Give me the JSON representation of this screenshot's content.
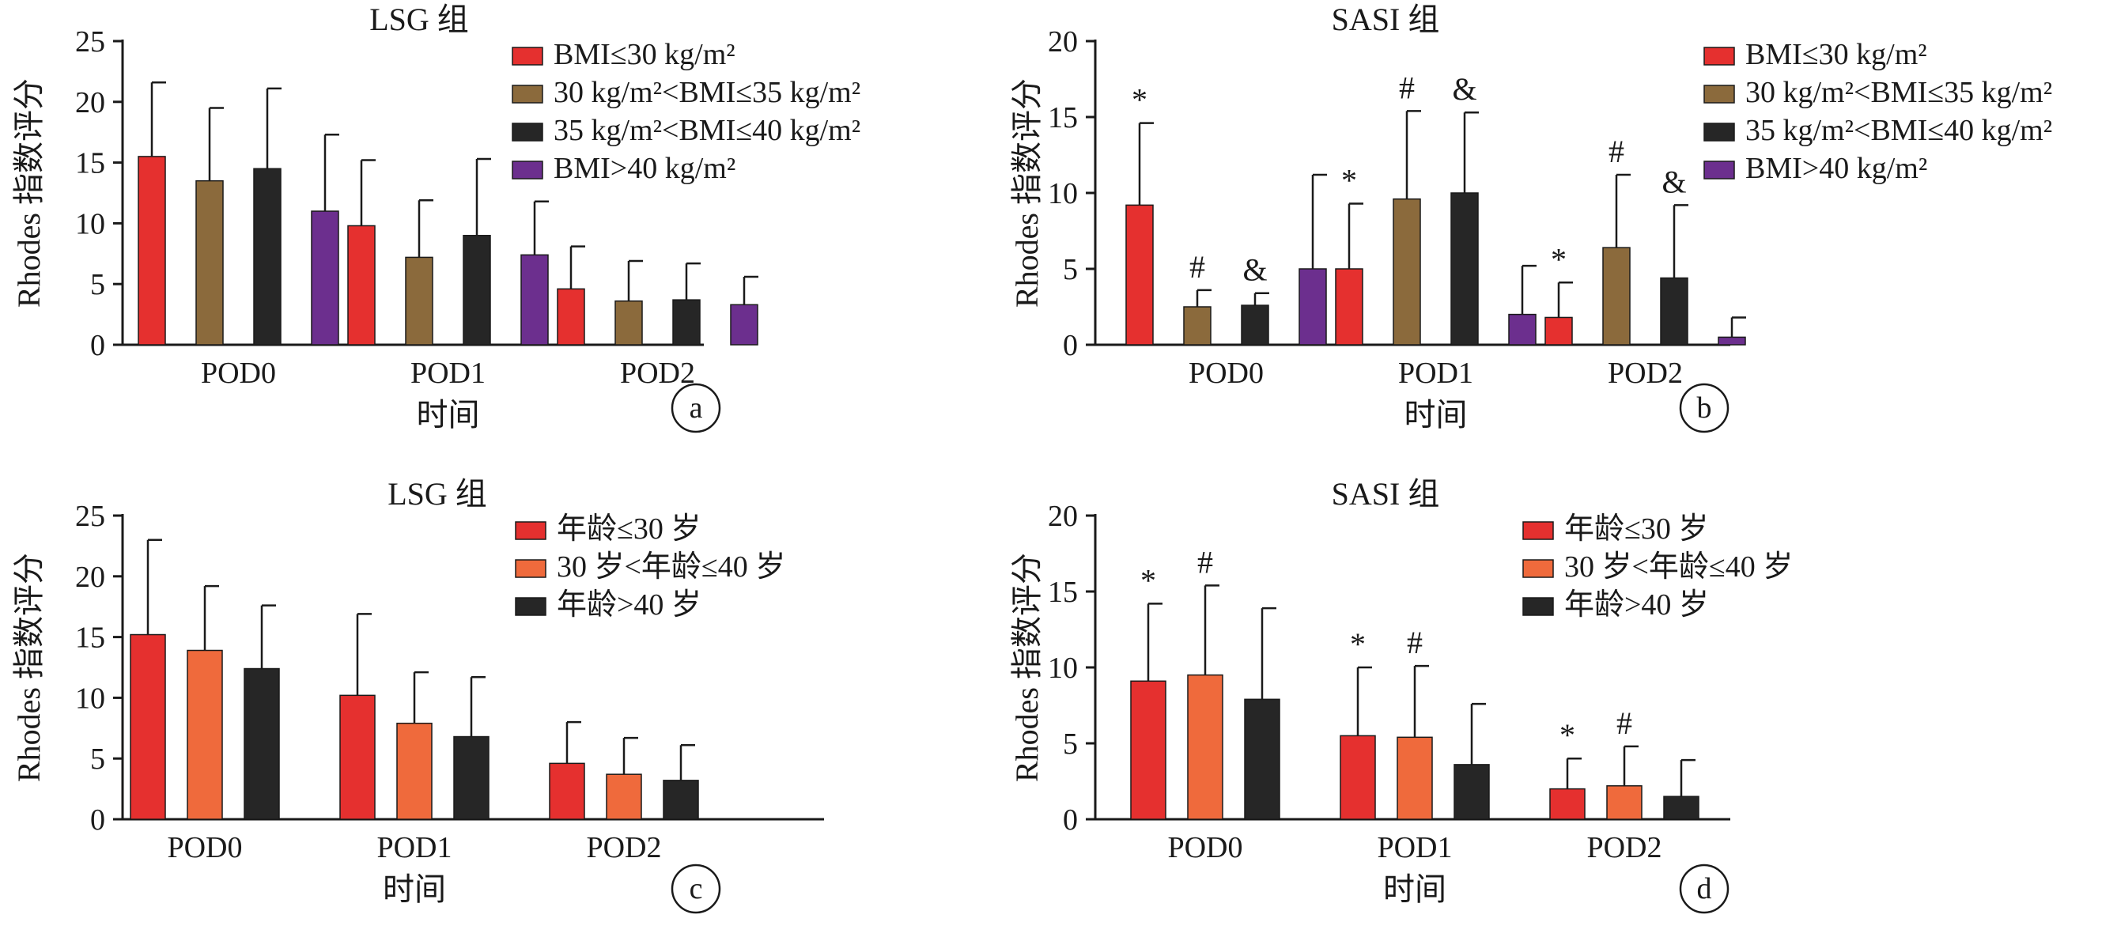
{
  "colors": {
    "red": "#e5302f",
    "brown": "#8b6a3c",
    "black": "#262626",
    "purple": "#6c2f8e",
    "orange": "#ef6a3c",
    "axis": "#1a1a1a"
  },
  "chart_data": [
    {
      "type": "bar",
      "title": "LSG 组",
      "panel_label": "a",
      "xlabel": "时间",
      "ylabel": "Rhodes 指数评分",
      "ylim": [
        0,
        25
      ],
      "yticks": [
        "0",
        "5",
        "10",
        "15",
        "20",
        "25"
      ],
      "categories": [
        "POD0",
        "POD1",
        "POD2"
      ],
      "legend_position": "top-right",
      "series": [
        {
          "name": "BMI≤30 kg/m²",
          "color": "red",
          "values": [
            15.5,
            9.8,
            4.6
          ],
          "errors": [
            6.1,
            5.4,
            3.5
          ],
          "markers": [
            "",
            "",
            ""
          ]
        },
        {
          "name": "30 kg/m²<BMI≤35 kg/m²",
          "color": "brown",
          "values": [
            13.5,
            7.2,
            3.6
          ],
          "errors": [
            6.0,
            4.7,
            3.3
          ],
          "markers": [
            "",
            "",
            ""
          ]
        },
        {
          "name": "35 kg/m²<BMI≤40 kg/m²",
          "color": "black",
          "values": [
            14.5,
            9.0,
            3.7
          ],
          "errors": [
            6.6,
            6.3,
            3.0
          ],
          "markers": [
            "",
            "",
            ""
          ]
        },
        {
          "name": "BMI>40 kg/m²",
          "color": "purple",
          "values": [
            11.0,
            7.4,
            3.3
          ],
          "errors": [
            6.3,
            4.4,
            2.3
          ],
          "markers": [
            "",
            "",
            ""
          ]
        }
      ]
    },
    {
      "type": "bar",
      "title": "SASI 组",
      "panel_label": "b",
      "xlabel": "时间",
      "ylabel": "Rhodes 指数评分",
      "ylim": [
        0,
        20
      ],
      "yticks": [
        "0",
        "5",
        "10",
        "15",
        "20"
      ],
      "categories": [
        "POD0",
        "POD1",
        "POD2"
      ],
      "legend_position": "top-right",
      "series": [
        {
          "name": "BMI≤30 kg/m²",
          "color": "red",
          "values": [
            9.2,
            5.0,
            1.8
          ],
          "errors": [
            5.4,
            4.3,
            2.3
          ],
          "markers": [
            "*",
            "*",
            "*"
          ]
        },
        {
          "name": "30 kg/m²<BMI≤35 kg/m²",
          "color": "brown",
          "values": [
            2.5,
            9.6,
            6.4
          ],
          "errors": [
            1.1,
            5.8,
            4.8
          ],
          "markers": [
            "#",
            "#",
            "#"
          ]
        },
        {
          "name": "35 kg/m²<BMI≤40 kg/m²",
          "color": "black",
          "values": [
            2.6,
            10.0,
            4.4
          ],
          "errors": [
            0.8,
            5.3,
            4.8
          ],
          "markers": [
            "&",
            "&",
            "&"
          ]
        },
        {
          "name": "BMI>40 kg/m²",
          "color": "purple",
          "values": [
            5.0,
            2.0,
            0.5
          ],
          "errors": [
            6.2,
            3.2,
            1.3
          ],
          "markers": [
            "",
            "",
            ""
          ]
        }
      ]
    },
    {
      "type": "bar",
      "title": "LSG 组",
      "panel_label": "c",
      "xlabel": "时间",
      "ylabel": "Rhodes 指数评分",
      "ylim": [
        0,
        25
      ],
      "yticks": [
        "0",
        "5",
        "10",
        "15",
        "20",
        "25"
      ],
      "categories": [
        "POD0",
        "POD1",
        "POD2"
      ],
      "legend_position": "top-right",
      "series": [
        {
          "name": "年龄≤30 岁",
          "color": "red",
          "values": [
            15.2,
            10.2,
            4.6
          ],
          "errors": [
            7.8,
            6.7,
            3.4
          ],
          "markers": [
            "",
            "",
            ""
          ]
        },
        {
          "name": "30 岁<年龄≤40 岁",
          "color": "orange",
          "values": [
            13.9,
            7.9,
            3.7
          ],
          "errors": [
            5.3,
            4.2,
            3.0
          ],
          "markers": [
            "",
            "",
            ""
          ]
        },
        {
          "name": "年龄>40 岁",
          "color": "black",
          "values": [
            12.4,
            6.8,
            3.2
          ],
          "errors": [
            5.2,
            4.9,
            2.9
          ],
          "markers": [
            "",
            "",
            ""
          ]
        }
      ]
    },
    {
      "type": "bar",
      "title": "SASI 组",
      "panel_label": "d",
      "xlabel": "时间",
      "ylabel": "Rhodes 指数评分",
      "ylim": [
        0,
        20
      ],
      "yticks": [
        "0",
        "5",
        "10",
        "15",
        "20"
      ],
      "categories": [
        "POD0",
        "POD1",
        "POD2"
      ],
      "legend_position": "top-right",
      "series": [
        {
          "name": "年龄≤30 岁",
          "color": "red",
          "values": [
            9.1,
            5.5,
            2.0
          ],
          "errors": [
            5.1,
            4.5,
            2.0
          ],
          "markers": [
            "*",
            "*",
            "*"
          ]
        },
        {
          "name": "30 岁<年龄≤40 岁",
          "color": "orange",
          "values": [
            9.5,
            5.4,
            2.2
          ],
          "errors": [
            5.9,
            4.7,
            2.6
          ],
          "markers": [
            "#",
            "#",
            "#"
          ]
        },
        {
          "name": "年龄>40 岁",
          "color": "black",
          "values": [
            7.9,
            3.6,
            1.5
          ],
          "errors": [
            6.0,
            4.0,
            2.4
          ],
          "markers": [
            "",
            "",
            ""
          ]
        }
      ]
    }
  ]
}
